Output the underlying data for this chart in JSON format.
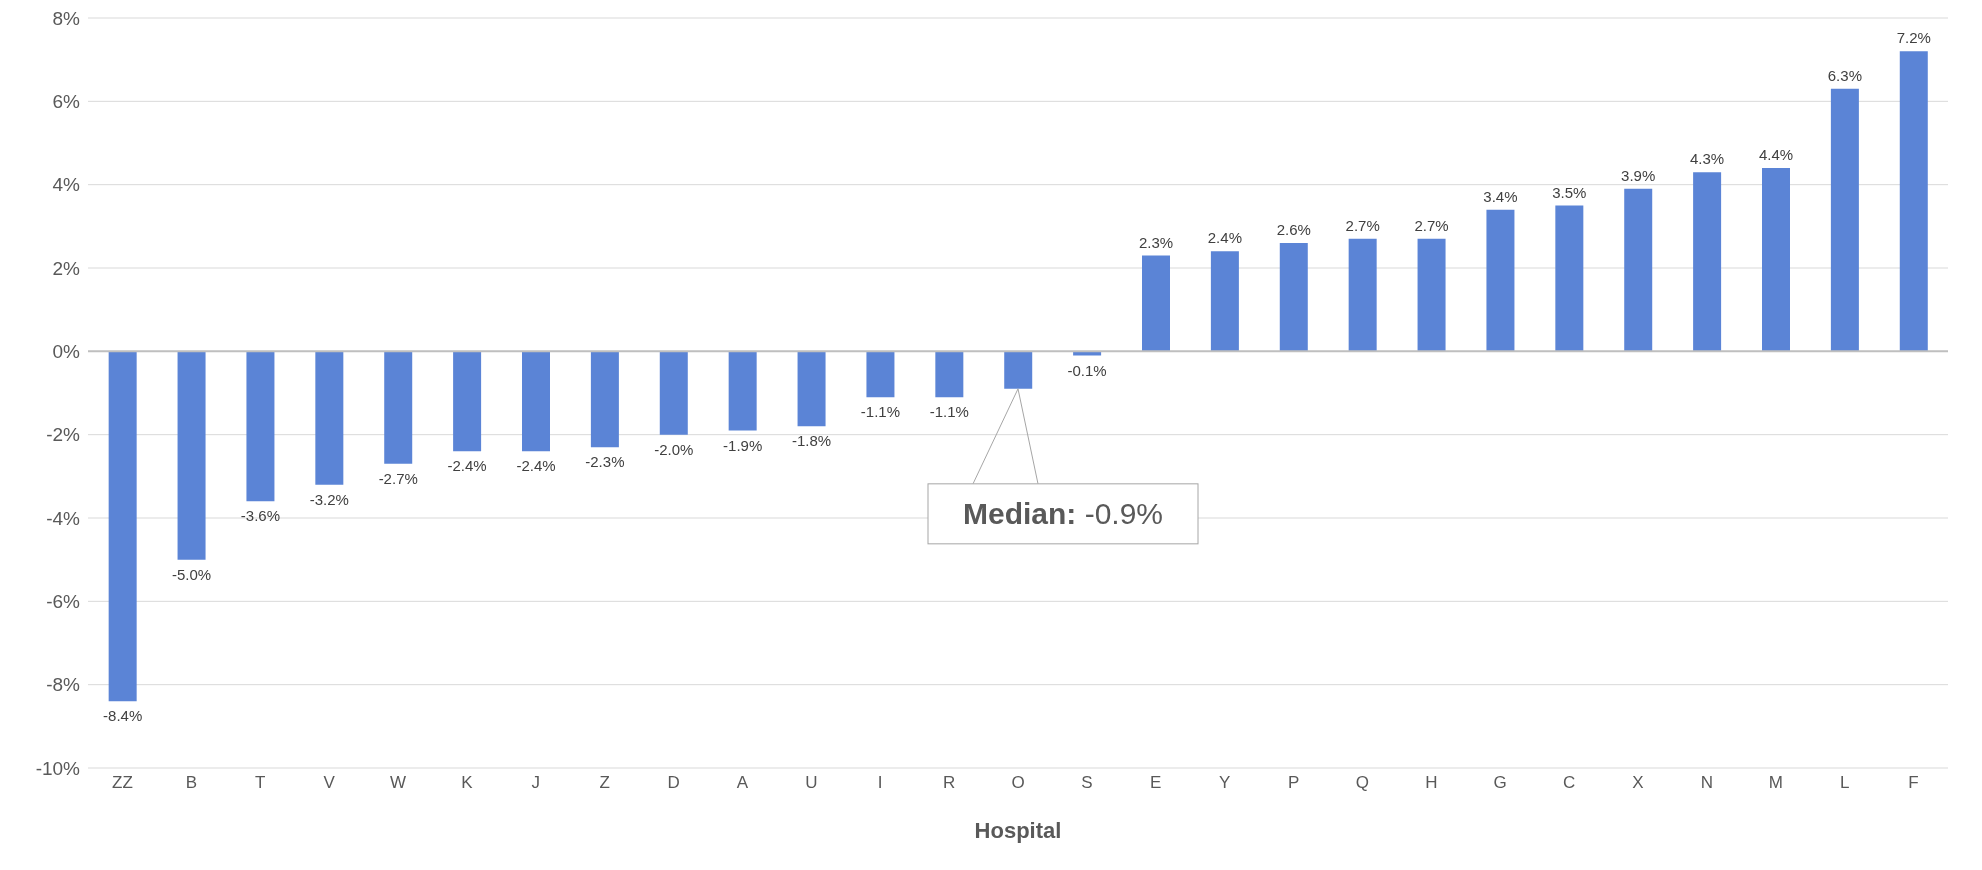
{
  "chart_data": {
    "type": "bar",
    "xlabel": "Hospital",
    "categories": [
      "ZZ",
      "B",
      "T",
      "V",
      "W",
      "K",
      "J",
      "Z",
      "D",
      "A",
      "U",
      "I",
      "R",
      "O",
      "S",
      "E",
      "Y",
      "P",
      "Q",
      "H",
      "G",
      "C",
      "X",
      "N",
      "M",
      "L",
      "F"
    ],
    "values": [
      -8.4,
      -5.0,
      -3.6,
      -3.2,
      -2.7,
      -2.4,
      -2.4,
      -2.3,
      -2.0,
      -1.9,
      -1.8,
      -1.1,
      -1.1,
      -0.9,
      -0.1,
      2.3,
      2.4,
      2.6,
      2.7,
      2.7,
      3.4,
      3.5,
      3.9,
      4.3,
      4.4,
      6.3,
      7.2
    ],
    "value_labels": [
      "-8.4%",
      "-5.0%",
      "-3.6%",
      "-3.2%",
      "-2.7%",
      "-2.4%",
      "-2.4%",
      "-2.3%",
      "-2.0%",
      "-1.9%",
      "-1.8%",
      "-1.1%",
      "-1.1%",
      null,
      "-0.1%",
      "2.3%",
      "2.4%",
      "2.6%",
      "2.7%",
      "2.7%",
      "3.4%",
      "3.5%",
      "3.9%",
      "4.3%",
      "4.4%",
      "6.3%",
      "7.2%"
    ],
    "color": "#5b84d6",
    "ylim": [
      -10,
      8
    ],
    "yticks": [
      {
        "value": -10,
        "label": "-10%"
      },
      {
        "value": -8,
        "label": "-8%"
      },
      {
        "value": -6,
        "label": "-6%"
      },
      {
        "value": -4,
        "label": "-4%"
      },
      {
        "value": -2,
        "label": "-2%"
      },
      {
        "value": 0,
        "label": "0%"
      },
      {
        "value": 2,
        "label": "2%"
      },
      {
        "value": 4,
        "label": "4%"
      },
      {
        "value": 6,
        "label": "6%"
      },
      {
        "value": 8,
        "label": "8%"
      }
    ],
    "grid": "y",
    "annotations": [
      {
        "text": "Median: -0.9%",
        "x": "O",
        "y": -0.9
      }
    ]
  }
}
